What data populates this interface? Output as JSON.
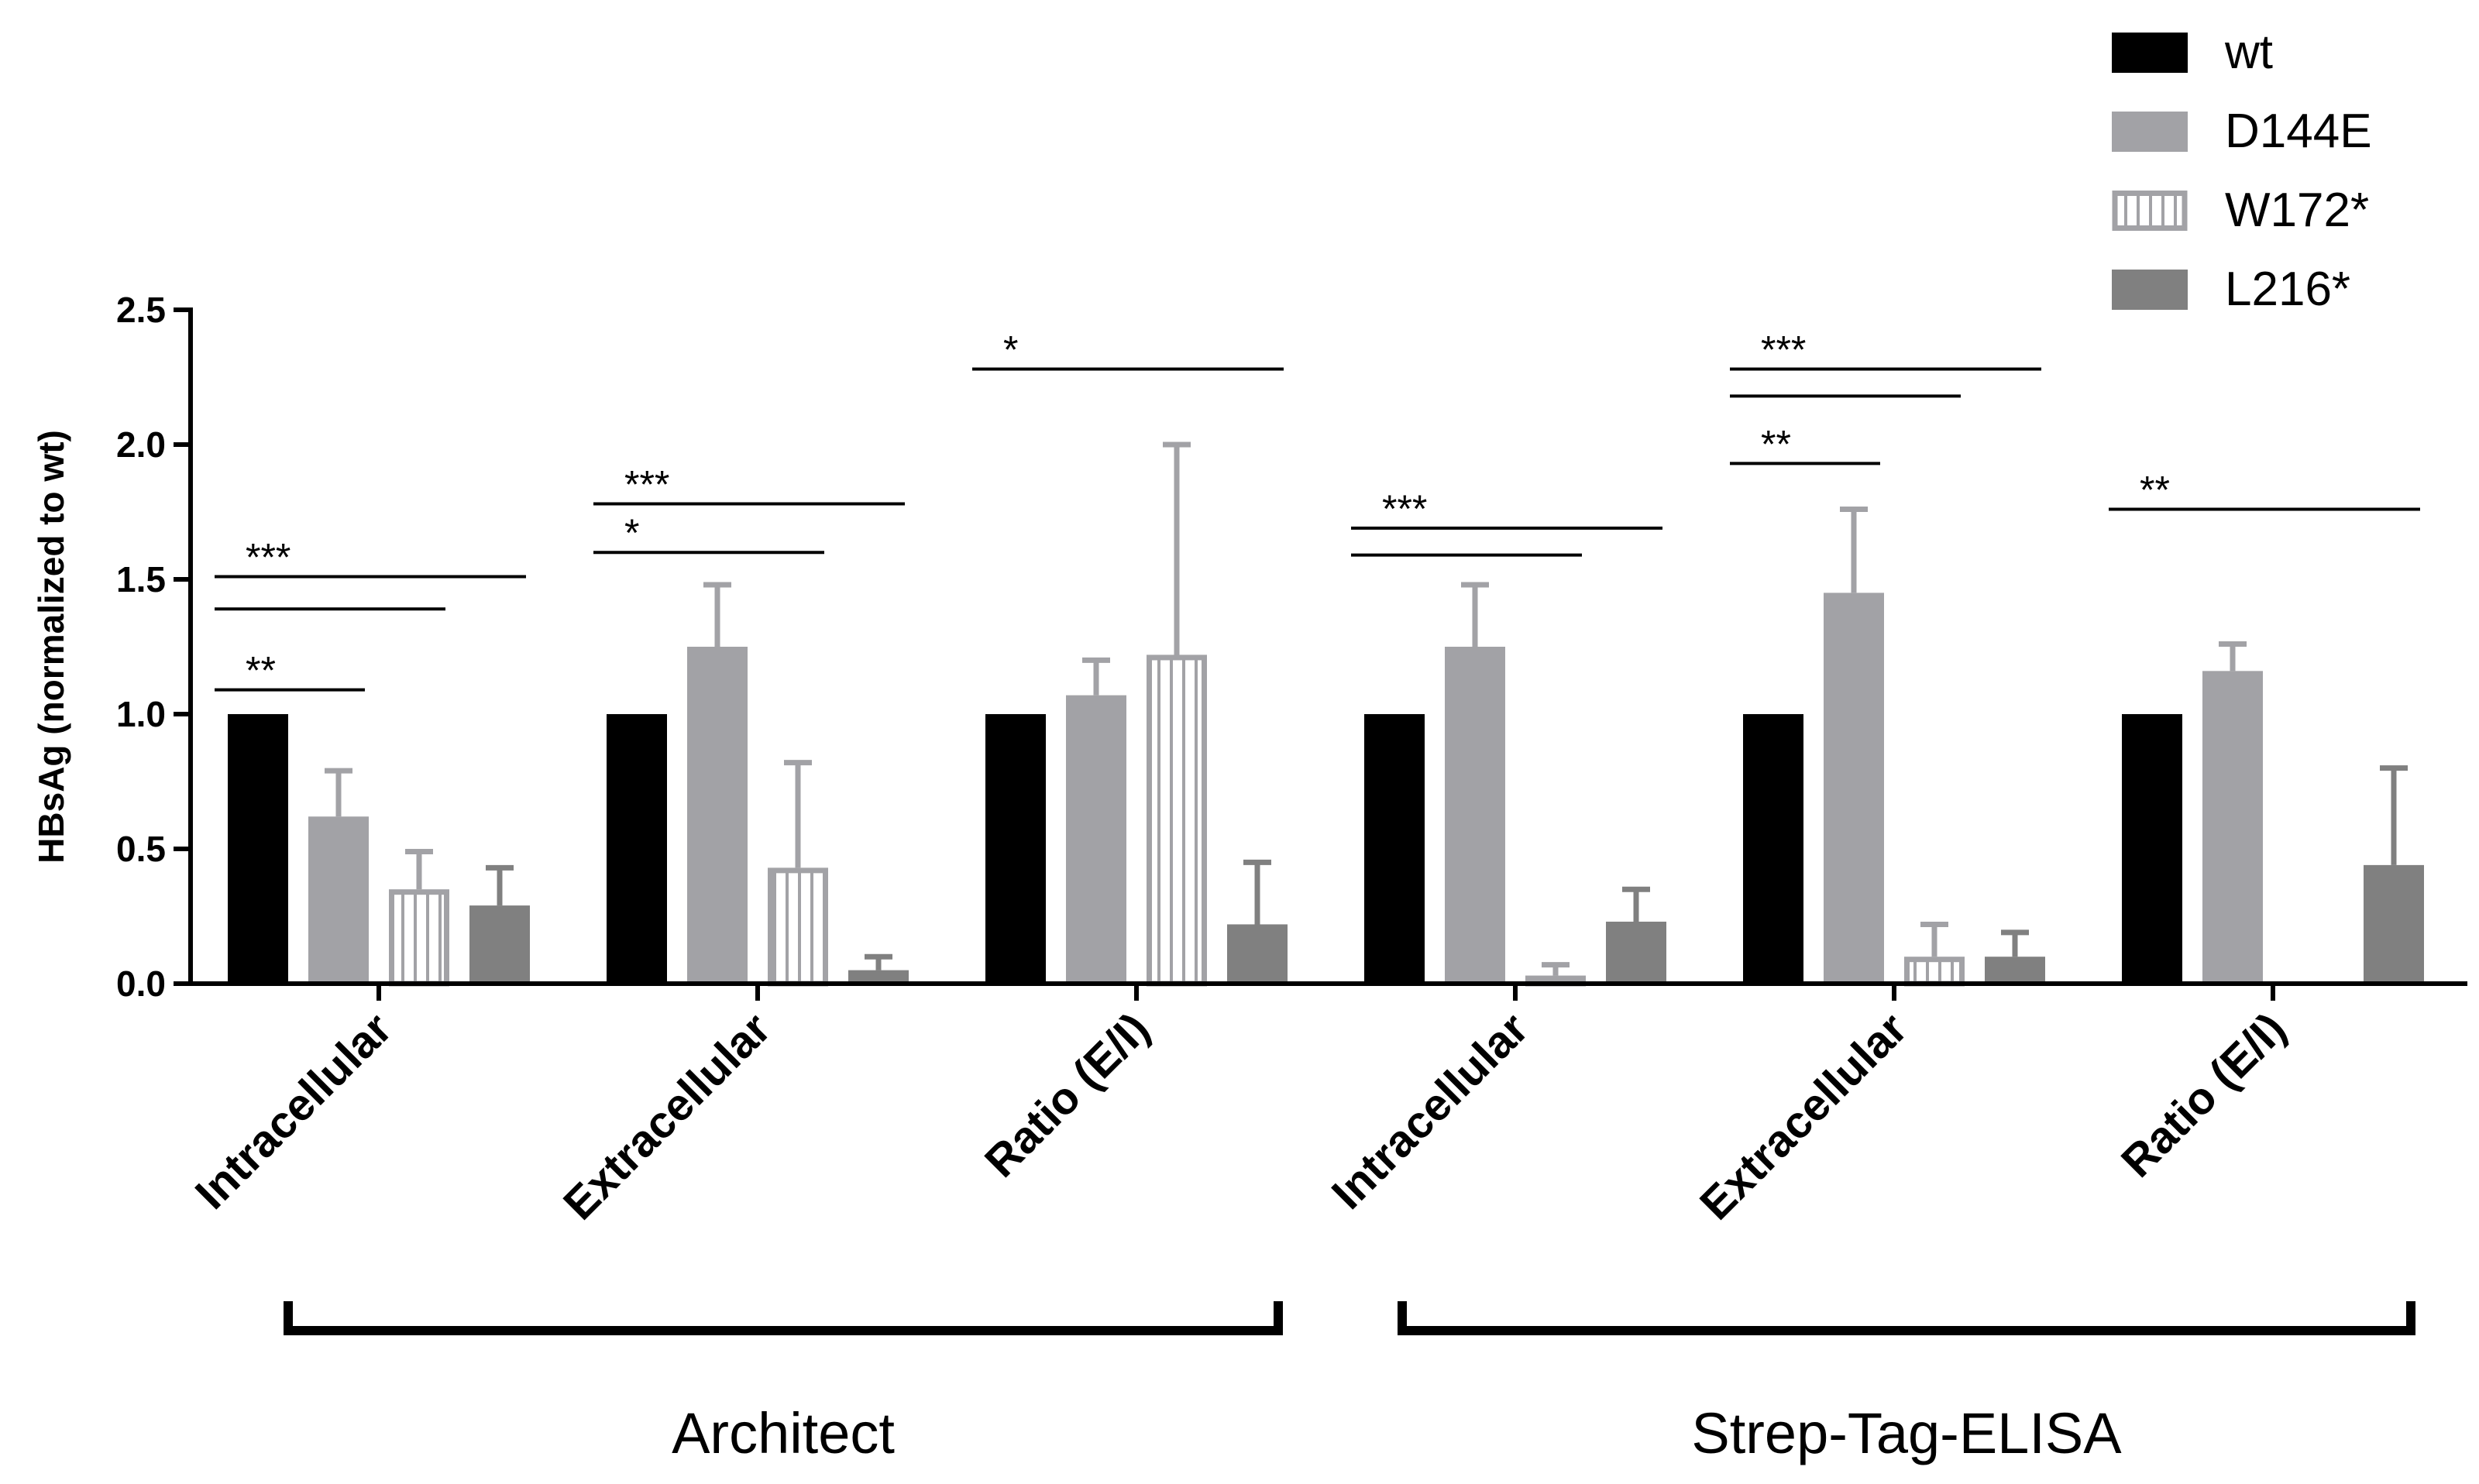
{
  "chart_data": {
    "type": "bar",
    "ylabel": "HBsAg (normalized to wt)",
    "ylim": [
      0,
      2.5
    ],
    "yticks": [
      "0.0",
      "0.5",
      "1.0",
      "1.5",
      "2.0",
      "2.5"
    ],
    "categories": [
      "Intracellular",
      "Extracellular",
      "Ratio (E/I)",
      "Intracellular",
      "Extracellular",
      "Ratio (E/I)"
    ],
    "groups": [
      {
        "label": "Architect",
        "categories": [
          0,
          1,
          2
        ]
      },
      {
        "label": "Strep-Tag-ELISA",
        "categories": [
          3,
          4,
          5
        ]
      }
    ],
    "series": [
      {
        "name": "wt",
        "color": "#000000",
        "pattern": "solid",
        "values": [
          1.0,
          1.0,
          1.0,
          1.0,
          1.0,
          1.0
        ],
        "errors": [
          null,
          null,
          null,
          null,
          null,
          null
        ]
      },
      {
        "name": "D144E",
        "color": "#a2a2a6",
        "pattern": "solid",
        "values": [
          0.62,
          1.25,
          1.07,
          1.25,
          1.45,
          1.16
        ],
        "errors": [
          0.79,
          1.48,
          1.2,
          1.48,
          1.76,
          1.26
        ]
      },
      {
        "name": "W172*",
        "color": "#a2a2a6",
        "pattern": "vertical-stripes",
        "values": [
          0.35,
          0.43,
          1.22,
          0.03,
          0.1,
          0.0
        ],
        "errors": [
          0.49,
          0.82,
          2.0,
          0.07,
          0.22,
          null
        ]
      },
      {
        "name": "L216*",
        "color": "#808080",
        "pattern": "solid",
        "values": [
          0.29,
          0.05,
          0.22,
          0.23,
          0.1,
          0.44
        ],
        "errors": [
          0.43,
          0.1,
          0.45,
          0.35,
          0.19,
          0.8
        ]
      }
    ],
    "significance": [
      {
        "category": 0,
        "from": 0,
        "to": 1,
        "y": 1.09,
        "label": "**"
      },
      {
        "category": 0,
        "from": 0,
        "to": 2,
        "y": 1.39,
        "label": ""
      },
      {
        "category": 0,
        "from": 0,
        "to": 3,
        "y": 1.51,
        "label": "***"
      },
      {
        "category": 1,
        "from": 0,
        "to": 2,
        "y": 1.6,
        "label": "*"
      },
      {
        "category": 1,
        "from": 0,
        "to": 3,
        "y": 1.78,
        "label": "***"
      },
      {
        "category": 2,
        "from": 0,
        "to": 3,
        "y": 2.28,
        "label": "*"
      },
      {
        "category": 3,
        "from": 0,
        "to": 2,
        "y": 1.59,
        "label": ""
      },
      {
        "category": 3,
        "from": 0,
        "to": 3,
        "y": 1.69,
        "label": "***"
      },
      {
        "category": 4,
        "from": 0,
        "to": 1,
        "y": 1.93,
        "label": "**"
      },
      {
        "category": 4,
        "from": 0,
        "to": 2,
        "y": 2.18,
        "label": ""
      },
      {
        "category": 4,
        "from": 0,
        "to": 3,
        "y": 2.28,
        "label": "***"
      },
      {
        "category": 5,
        "from": 0,
        "to": 3,
        "y": 1.76,
        "label": "**"
      }
    ],
    "legend_position": "top-right",
    "grid": false
  }
}
